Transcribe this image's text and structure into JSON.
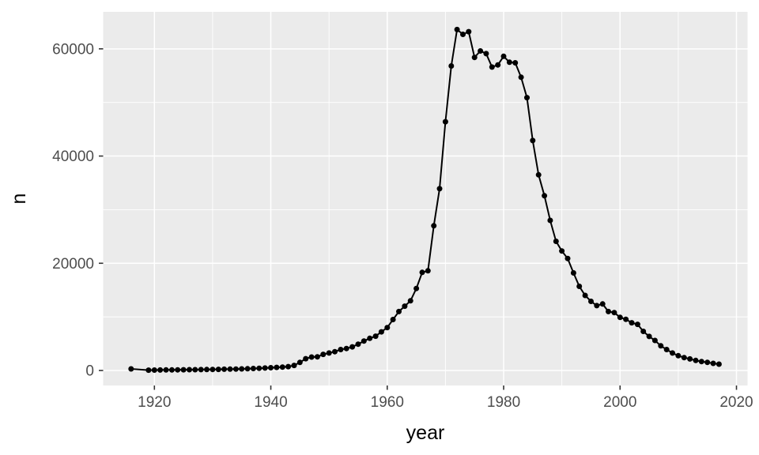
{
  "chart_data": {
    "type": "line",
    "title": "",
    "xlabel": "year",
    "ylabel": "n",
    "legend_position": "none",
    "grid": true,
    "x_ticks": [
      1920,
      1940,
      1960,
      1980,
      2000,
      2020
    ],
    "x_minor_ticks": [
      1930,
      1950,
      1970,
      1990,
      2010
    ],
    "y_ticks": [
      0,
      20000,
      40000,
      60000
    ],
    "y_minor_ticks": [
      10000,
      30000,
      50000
    ],
    "x_range": [
      1911.2,
      2021.9
    ],
    "y_range": [
      -2800,
      66900
    ],
    "style": {
      "panel_bg": "#EBEBEB",
      "grid_color": "#FFFFFF",
      "line_color": "#000000",
      "point_color": "#000000",
      "tick_label_color": "#4D4D4D",
      "axis_title_color": "#000000",
      "tick_mark_color": "#333333"
    },
    "series": [
      {
        "name": "n",
        "points": [
          [
            1916,
            300
          ],
          [
            1919,
            60
          ],
          [
            1920,
            80
          ],
          [
            1921,
            90
          ],
          [
            1922,
            100
          ],
          [
            1923,
            110
          ],
          [
            1924,
            120
          ],
          [
            1925,
            130
          ],
          [
            1926,
            140
          ],
          [
            1927,
            150
          ],
          [
            1928,
            160
          ],
          [
            1929,
            170
          ],
          [
            1930,
            190
          ],
          [
            1931,
            210
          ],
          [
            1932,
            230
          ],
          [
            1933,
            250
          ],
          [
            1934,
            270
          ],
          [
            1935,
            300
          ],
          [
            1936,
            330
          ],
          [
            1937,
            370
          ],
          [
            1938,
            410
          ],
          [
            1939,
            460
          ],
          [
            1940,
            510
          ],
          [
            1941,
            570
          ],
          [
            1942,
            640
          ],
          [
            1943,
            720
          ],
          [
            1944,
            950
          ],
          [
            1945,
            1500
          ],
          [
            1946,
            2200
          ],
          [
            1947,
            2500
          ],
          [
            1948,
            2550
          ],
          [
            1949,
            3000
          ],
          [
            1950,
            3250
          ],
          [
            1951,
            3500
          ],
          [
            1952,
            3900
          ],
          [
            1953,
            4100
          ],
          [
            1954,
            4400
          ],
          [
            1955,
            4900
          ],
          [
            1956,
            5500
          ],
          [
            1957,
            6000
          ],
          [
            1958,
            6400
          ],
          [
            1959,
            7200
          ],
          [
            1960,
            8000
          ],
          [
            1961,
            9500
          ],
          [
            1962,
            11000
          ],
          [
            1963,
            12000
          ],
          [
            1964,
            13000
          ],
          [
            1965,
            15300
          ],
          [
            1966,
            18300
          ],
          [
            1967,
            18600
          ],
          [
            1968,
            27000
          ],
          [
            1969,
            33900
          ],
          [
            1970,
            46400
          ],
          [
            1971,
            56800
          ],
          [
            1972,
            63600
          ],
          [
            1973,
            62700
          ],
          [
            1974,
            63200
          ],
          [
            1975,
            58400
          ],
          [
            1976,
            59600
          ],
          [
            1977,
            59100
          ],
          [
            1978,
            56600
          ],
          [
            1979,
            57000
          ],
          [
            1980,
            58600
          ],
          [
            1981,
            57500
          ],
          [
            1982,
            57400
          ],
          [
            1983,
            54700
          ],
          [
            1984,
            50900
          ],
          [
            1985,
            42900
          ],
          [
            1986,
            36500
          ],
          [
            1987,
            32600
          ],
          [
            1988,
            28000
          ],
          [
            1989,
            24100
          ],
          [
            1990,
            22300
          ],
          [
            1991,
            20900
          ],
          [
            1992,
            18200
          ],
          [
            1993,
            15700
          ],
          [
            1994,
            14000
          ],
          [
            1995,
            12900
          ],
          [
            1996,
            12100
          ],
          [
            1997,
            12400
          ],
          [
            1998,
            11000
          ],
          [
            1999,
            10800
          ],
          [
            2000,
            9900
          ],
          [
            2001,
            9550
          ],
          [
            2002,
            8900
          ],
          [
            2003,
            8600
          ],
          [
            2004,
            7300
          ],
          [
            2005,
            6350
          ],
          [
            2006,
            5600
          ],
          [
            2007,
            4600
          ],
          [
            2008,
            3900
          ],
          [
            2009,
            3250
          ],
          [
            2010,
            2750
          ],
          [
            2011,
            2400
          ],
          [
            2012,
            2150
          ],
          [
            2013,
            1870
          ],
          [
            2014,
            1670
          ],
          [
            2015,
            1520
          ],
          [
            2016,
            1330
          ],
          [
            2017,
            1180
          ]
        ]
      }
    ]
  }
}
